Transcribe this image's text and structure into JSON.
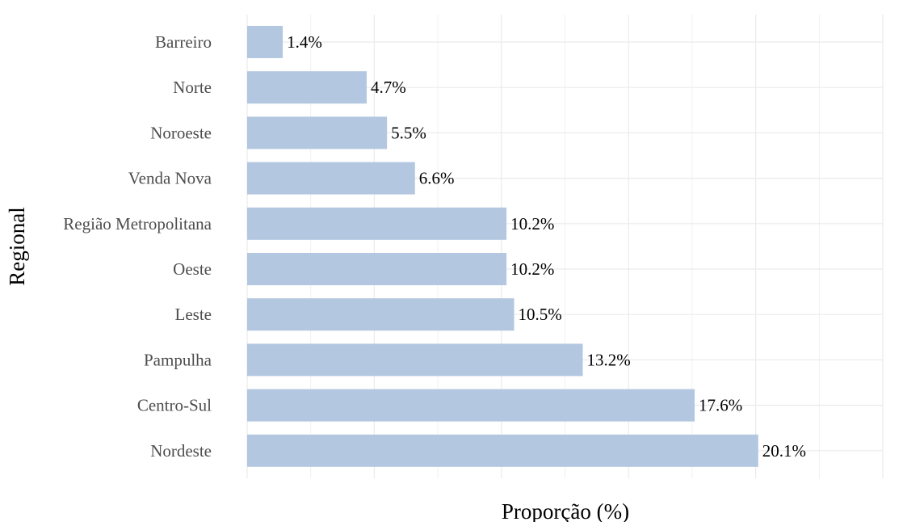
{
  "chart_data": {
    "type": "bar",
    "orientation": "horizontal",
    "categories": [
      "Barreiro",
      "Norte",
      "Noroeste",
      "Venda Nova",
      "Região Metropolitana",
      "Oeste",
      "Leste",
      "Pampulha",
      "Centro-Sul",
      "Nordeste"
    ],
    "values": [
      1.4,
      4.7,
      5.5,
      6.6,
      10.2,
      10.2,
      10.5,
      13.2,
      17.6,
      20.1
    ],
    "value_labels": [
      "1.4%",
      "4.7%",
      "5.5%",
      "6.6%",
      "10.2%",
      "10.2%",
      "10.5%",
      "13.2%",
      "17.6%",
      "20.1%"
    ],
    "title": "",
    "xlabel": "Proporção (%)",
    "ylabel": "Regional",
    "xlim": [
      0,
      25
    ],
    "grid": true,
    "x_tick_labels_visible": false,
    "legend": "none",
    "colors": {
      "bar": "#b3c7e0",
      "grid": "#ebebeb",
      "label_text": "#000000",
      "tick_text": "#4d4d4d"
    }
  }
}
